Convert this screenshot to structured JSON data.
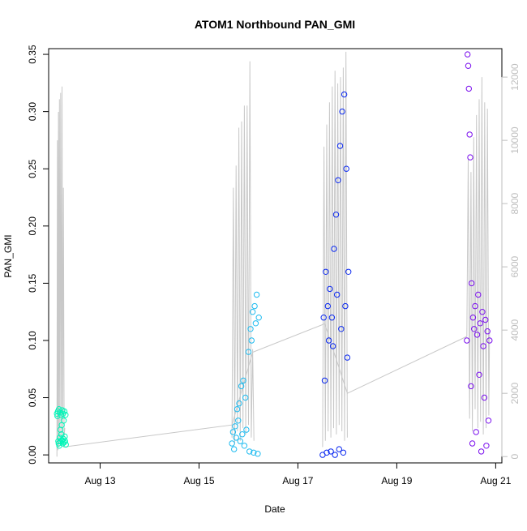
{
  "chart_data": {
    "type": "scatter",
    "title": "ATOM1 Northbound PAN_GMI",
    "xlabel": "Date",
    "ylabel": "PAN_GMI",
    "x_unit": "date",
    "xlim": [
      "2023-08-11T23:00",
      "2023-08-21T03:00"
    ],
    "ylim": [
      -0.007,
      0.355
    ],
    "x_ticks": [
      {
        "label": "Aug 13",
        "date": "2023-08-13T00:00"
      },
      {
        "label": "Aug 15",
        "date": "2023-08-15T00:00"
      },
      {
        "label": "Aug 17",
        "date": "2023-08-17T00:00"
      },
      {
        "label": "Aug 19",
        "date": "2023-08-19T00:00"
      },
      {
        "label": "Aug 21",
        "date": "2023-08-21T00:00"
      }
    ],
    "y_ticks": [
      "0.00",
      "0.05",
      "0.10",
      "0.15",
      "0.20",
      "0.25",
      "0.30",
      "0.35"
    ],
    "y2_ticks": [
      "0",
      "2000",
      "4000",
      "6000",
      "8000",
      "10000",
      "12000"
    ],
    "y2lim": [
      -200,
      12900
    ],
    "y2_color": "#bebebe",
    "grid": false,
    "legend": "none",
    "secondary_line_color": "#c8c8c8",
    "groups": [
      {
        "color": "#00f5b8",
        "points": [
          [
            "2023-08-12T03:00",
            0.036
          ],
          [
            "2023-08-12T03:15",
            0.034
          ],
          [
            "2023-08-12T03:30",
            0.038
          ],
          [
            "2023-08-12T03:40",
            0.012
          ],
          [
            "2023-08-12T03:50",
            0.01
          ],
          [
            "2023-08-12T04:00",
            0.04
          ],
          [
            "2023-08-12T04:10",
            0.008
          ],
          [
            "2023-08-12T04:20",
            0.015
          ],
          [
            "2023-08-12T04:30",
            0.037
          ],
          [
            "2023-08-12T04:40",
            0.022
          ],
          [
            "2023-08-12T04:50",
            0.012
          ],
          [
            "2023-08-12T05:00",
            0.035
          ],
          [
            "2023-08-12T05:10",
            0.018
          ],
          [
            "2023-08-12T05:20",
            0.026
          ],
          [
            "2023-08-12T05:30",
            0.013
          ],
          [
            "2023-08-12T05:40",
            0.039
          ],
          [
            "2023-08-12T05:50",
            0.01
          ],
          [
            "2023-08-12T06:00",
            0.036
          ],
          [
            "2023-08-12T06:10",
            0.014
          ],
          [
            "2023-08-12T06:20",
            0.03
          ],
          [
            "2023-08-12T06:30",
            0.011
          ],
          [
            "2023-08-12T06:40",
            0.038
          ],
          [
            "2023-08-12T06:50",
            0.016
          ],
          [
            "2023-08-12T07:00",
            0.012
          ],
          [
            "2023-08-12T07:10",
            0.035
          ],
          [
            "2023-08-12T07:20",
            0.009
          ]
        ],
        "secondary_points": [
          [
            "2023-08-12T03:00",
            0
          ],
          [
            "2023-08-12T03:15",
            10000
          ],
          [
            "2023-08-12T03:30",
            200
          ],
          [
            "2023-08-12T03:45",
            10900
          ],
          [
            "2023-08-12T04:00",
            300
          ],
          [
            "2023-08-12T04:15",
            11300
          ],
          [
            "2023-08-12T04:30",
            400
          ],
          [
            "2023-08-12T04:50",
            11500
          ],
          [
            "2023-08-12T05:10",
            500
          ],
          [
            "2023-08-12T05:30",
            11700
          ],
          [
            "2023-08-12T05:50",
            400
          ],
          [
            "2023-08-12T06:10",
            8500
          ],
          [
            "2023-08-12T06:30",
            600
          ],
          [
            "2023-08-12T06:50",
            900
          ]
        ]
      },
      {
        "color": "#1ebbf0",
        "points": [
          [
            "2023-08-15T16:00",
            0.01
          ],
          [
            "2023-08-15T16:30",
            0.02
          ],
          [
            "2023-08-15T17:00",
            0.005
          ],
          [
            "2023-08-15T17:30",
            0.025
          ],
          [
            "2023-08-15T18:00",
            0.015
          ],
          [
            "2023-08-15T18:30",
            0.04
          ],
          [
            "2023-08-15T19:00",
            0.03
          ],
          [
            "2023-08-15T19:30",
            0.045
          ],
          [
            "2023-08-15T20:00",
            0.012
          ],
          [
            "2023-08-15T20:30",
            0.06
          ],
          [
            "2023-08-15T21:00",
            0.018
          ],
          [
            "2023-08-15T21:30",
            0.065
          ],
          [
            "2023-08-15T22:00",
            0.008
          ],
          [
            "2023-08-15T22:30",
            0.05
          ],
          [
            "2023-08-15T23:00",
            0.022
          ],
          [
            "2023-08-16T00:00",
            0.09
          ],
          [
            "2023-08-16T00:30",
            0.003
          ],
          [
            "2023-08-16T01:00",
            0.11
          ],
          [
            "2023-08-16T01:30",
            0.1
          ],
          [
            "2023-08-16T02:00",
            0.125
          ],
          [
            "2023-08-16T02:30",
            0.002
          ],
          [
            "2023-08-16T03:00",
            0.13
          ],
          [
            "2023-08-16T03:30",
            0.115
          ],
          [
            "2023-08-16T04:00",
            0.14
          ],
          [
            "2023-08-16T04:30",
            0.001
          ],
          [
            "2023-08-16T05:00",
            0.12
          ]
        ],
        "secondary_points": [
          [
            "2023-08-15T16:00",
            600
          ],
          [
            "2023-08-15T16:40",
            8500
          ],
          [
            "2023-08-15T17:20",
            400
          ],
          [
            "2023-08-15T18:00",
            9200
          ],
          [
            "2023-08-15T18:40",
            800
          ],
          [
            "2023-08-15T19:20",
            10400
          ],
          [
            "2023-08-15T20:00",
            500
          ],
          [
            "2023-08-15T20:40",
            10600
          ],
          [
            "2023-08-15T21:20",
            900
          ],
          [
            "2023-08-15T22:00",
            11100
          ],
          [
            "2023-08-15T22:40",
            700
          ],
          [
            "2023-08-15T23:20",
            11100
          ],
          [
            "2023-08-16T00:00",
            1000
          ],
          [
            "2023-08-16T00:40",
            12500
          ],
          [
            "2023-08-16T01:20",
            600
          ],
          [
            "2023-08-16T02:00",
            3400
          ],
          [
            "2023-08-16T02:40",
            500
          ]
        ]
      },
      {
        "color": "#0a28f0",
        "points": [
          [
            "2023-08-17T12:00",
            0.0
          ],
          [
            "2023-08-17T12:30",
            0.12
          ],
          [
            "2023-08-17T13:00",
            0.065
          ],
          [
            "2023-08-17T13:30",
            0.16
          ],
          [
            "2023-08-17T14:00",
            0.002
          ],
          [
            "2023-08-17T14:30",
            0.13
          ],
          [
            "2023-08-17T15:00",
            0.1
          ],
          [
            "2023-08-17T15:30",
            0.145
          ],
          [
            "2023-08-17T16:00",
            0.003
          ],
          [
            "2023-08-17T16:30",
            0.12
          ],
          [
            "2023-08-17T17:00",
            0.095
          ],
          [
            "2023-08-17T17:30",
            0.18
          ],
          [
            "2023-08-17T18:00",
            0.0
          ],
          [
            "2023-08-17T18:30",
            0.21
          ],
          [
            "2023-08-17T19:00",
            0.14
          ],
          [
            "2023-08-17T19:30",
            0.24
          ],
          [
            "2023-08-17T20:00",
            0.005
          ],
          [
            "2023-08-17T20:30",
            0.27
          ],
          [
            "2023-08-17T21:00",
            0.11
          ],
          [
            "2023-08-17T21:30",
            0.3
          ],
          [
            "2023-08-17T22:00",
            0.002
          ],
          [
            "2023-08-17T22:30",
            0.315
          ],
          [
            "2023-08-17T23:00",
            0.13
          ],
          [
            "2023-08-17T23:30",
            0.25
          ],
          [
            "2023-08-18T00:00",
            0.085
          ],
          [
            "2023-08-18T00:30",
            0.16
          ]
        ],
        "secondary_points": [
          [
            "2023-08-17T12:00",
            300
          ],
          [
            "2023-08-17T12:40",
            9800
          ],
          [
            "2023-08-17T13:20",
            500
          ],
          [
            "2023-08-17T14:00",
            10500
          ],
          [
            "2023-08-17T14:40",
            800
          ],
          [
            "2023-08-17T15:20",
            11200
          ],
          [
            "2023-08-17T16:00",
            600
          ],
          [
            "2023-08-17T16:40",
            11700
          ],
          [
            "2023-08-17T17:20",
            900
          ],
          [
            "2023-08-17T18:00",
            12200
          ],
          [
            "2023-08-17T18:40",
            700
          ],
          [
            "2023-08-17T19:20",
            11800
          ],
          [
            "2023-08-17T20:00",
            1000
          ],
          [
            "2023-08-17T20:40",
            12000
          ],
          [
            "2023-08-17T21:20",
            800
          ],
          [
            "2023-08-17T22:00",
            12300
          ],
          [
            "2023-08-17T22:40",
            500
          ],
          [
            "2023-08-17T23:20",
            12800
          ],
          [
            "2023-08-18T00:00",
            600
          ]
        ]
      },
      {
        "color": "#7b10ee",
        "points": [
          [
            "2023-08-20T10:00",
            0.1
          ],
          [
            "2023-08-20T10:20",
            0.35
          ],
          [
            "2023-08-20T10:40",
            0.34
          ],
          [
            "2023-08-20T11:00",
            0.32
          ],
          [
            "2023-08-20T11:20",
            0.28
          ],
          [
            "2023-08-20T11:40",
            0.26
          ],
          [
            "2023-08-20T12:00",
            0.06
          ],
          [
            "2023-08-20T12:20",
            0.15
          ],
          [
            "2023-08-20T12:40",
            0.01
          ],
          [
            "2023-08-20T13:00",
            0.12
          ],
          [
            "2023-08-20T13:30",
            0.11
          ],
          [
            "2023-08-20T14:00",
            0.13
          ],
          [
            "2023-08-20T14:30",
            0.02
          ],
          [
            "2023-08-20T15:00",
            0.105
          ],
          [
            "2023-08-20T15:30",
            0.14
          ],
          [
            "2023-08-20T16:00",
            0.07
          ],
          [
            "2023-08-20T16:30",
            0.115
          ],
          [
            "2023-08-20T17:00",
            0.003
          ],
          [
            "2023-08-20T17:30",
            0.125
          ],
          [
            "2023-08-20T18:00",
            0.095
          ],
          [
            "2023-08-20T18:30",
            0.05
          ],
          [
            "2023-08-20T19:00",
            0.118
          ],
          [
            "2023-08-20T19:30",
            0.008
          ],
          [
            "2023-08-20T20:00",
            0.108
          ],
          [
            "2023-08-20T20:30",
            0.03
          ],
          [
            "2023-08-20T21:00",
            0.1
          ]
        ],
        "secondary_points": [
          [
            "2023-08-20T10:00",
            3800
          ],
          [
            "2023-08-20T10:40",
            9400
          ],
          [
            "2023-08-20T11:20",
            1200
          ],
          [
            "2023-08-20T12:00",
            9000
          ],
          [
            "2023-08-20T12:40",
            800
          ],
          [
            "2023-08-20T13:20",
            10100
          ],
          [
            "2023-08-20T14:00",
            1500
          ],
          [
            "2023-08-20T14:40",
            10800
          ],
          [
            "2023-08-20T15:20",
            900
          ],
          [
            "2023-08-20T16:00",
            11300
          ],
          [
            "2023-08-20T16:40",
            1100
          ],
          [
            "2023-08-20T17:20",
            12000
          ],
          [
            "2023-08-20T18:00",
            700
          ],
          [
            "2023-08-20T18:40",
            11200
          ],
          [
            "2023-08-20T19:20",
            900
          ],
          [
            "2023-08-20T20:00",
            11000
          ],
          [
            "2023-08-20T20:40",
            1300
          ],
          [
            "2023-08-20T21:00",
            4000
          ]
        ]
      }
    ],
    "connector_points": [
      [
        "2023-08-12T06:00",
        300
      ],
      [
        "2023-08-15T16:00",
        1000
      ],
      [
        "2023-08-16T02:00",
        3300
      ],
      [
        "2023-08-17T13:00",
        4200
      ],
      [
        "2023-08-18T00:00",
        2000
      ],
      [
        "2023-08-20T10:00",
        3800
      ]
    ]
  }
}
